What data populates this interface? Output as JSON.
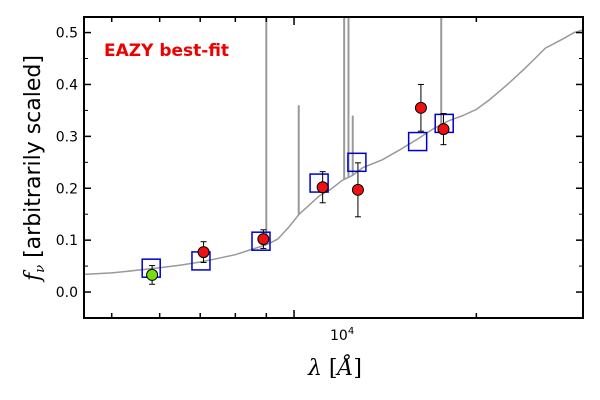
{
  "chart_data": {
    "type": "scatter",
    "annotation": "EAZY best-fit",
    "annotation_color": "#ee0000",
    "xlabel_html": "λ [Å]",
    "ylabel": "f_ν [arbitrarily scaled]",
    "x_scale": "log",
    "xlim": [
      4500,
      30000
    ],
    "ylim": [
      -0.05,
      0.53
    ],
    "x_tick_label": "10^4",
    "y_ticks": [
      0.0,
      0.1,
      0.2,
      0.3,
      0.4,
      0.5
    ],
    "y_tick_labels": [
      "0.0",
      "0.1",
      "0.2",
      "0.3",
      "0.4",
      "0.5"
    ],
    "colors": {
      "sed": "#999999",
      "model_box": "#0000cc",
      "obs_fill": "#ee1111",
      "obs_highlight_fill": "#77dd11",
      "errorbar": "#000000"
    },
    "sed_spectrum": [
      [
        4500,
        0.034
      ],
      [
        5000,
        0.037
      ],
      [
        5500,
        0.042
      ],
      [
        6000,
        0.047
      ],
      [
        6500,
        0.052
      ],
      [
        7000,
        0.058
      ],
      [
        7500,
        0.065
      ],
      [
        8000,
        0.072
      ],
      [
        8500,
        0.082
      ],
      [
        9000,
        0.091
      ],
      [
        9400,
        0.102
      ],
      [
        9800,
        0.125
      ],
      [
        10200,
        0.15
      ],
      [
        10600,
        0.168
      ],
      [
        11000,
        0.185
      ],
      [
        11500,
        0.198
      ],
      [
        12000,
        0.215
      ],
      [
        12500,
        0.225
      ],
      [
        13000,
        0.24
      ],
      [
        14000,
        0.255
      ],
      [
        15000,
        0.275
      ],
      [
        16000,
        0.295
      ],
      [
        17000,
        0.315
      ],
      [
        18000,
        0.33
      ],
      [
        19000,
        0.34
      ],
      [
        20000,
        0.352
      ],
      [
        21000,
        0.37
      ],
      [
        22000,
        0.39
      ],
      [
        23000,
        0.41
      ],
      [
        24000,
        0.43
      ],
      [
        25000,
        0.45
      ],
      [
        26000,
        0.47
      ],
      [
        27000,
        0.48
      ],
      [
        28000,
        0.49
      ],
      [
        29000,
        0.5
      ],
      [
        30000,
        0.505
      ]
    ],
    "sed_emission_lines": [
      {
        "x": 9000,
        "peak": 0.53
      },
      {
        "x": 10180,
        "peak": 0.36
      },
      {
        "x": 12100,
        "peak": 0.53
      },
      {
        "x": 12300,
        "peak": 0.53
      },
      {
        "x": 12500,
        "peak": 0.34
      },
      {
        "x": 17500,
        "peak": 0.53
      }
    ],
    "model_photometry": [
      {
        "x": 5810,
        "y": 0.046
      },
      {
        "x": 7020,
        "y": 0.06
      },
      {
        "x": 8820,
        "y": 0.098
      },
      {
        "x": 11000,
        "y": 0.21
      },
      {
        "x": 12700,
        "y": 0.25
      },
      {
        "x": 16000,
        "y": 0.29
      },
      {
        "x": 17700,
        "y": 0.325
      }
    ],
    "observed_photometry": [
      {
        "x": 5830,
        "y": 0.033,
        "err": 0.018,
        "highlight": true
      },
      {
        "x": 7090,
        "y": 0.077,
        "err": 0.02,
        "highlight": false
      },
      {
        "x": 8900,
        "y": 0.102,
        "err": 0.018,
        "highlight": false
      },
      {
        "x": 11150,
        "y": 0.202,
        "err": 0.03,
        "highlight": false
      },
      {
        "x": 12750,
        "y": 0.197,
        "err": 0.052,
        "highlight": false
      },
      {
        "x": 16200,
        "y": 0.355,
        "err": 0.045,
        "highlight": false
      },
      {
        "x": 17650,
        "y": 0.314,
        "err": 0.03,
        "highlight": false
      }
    ]
  }
}
